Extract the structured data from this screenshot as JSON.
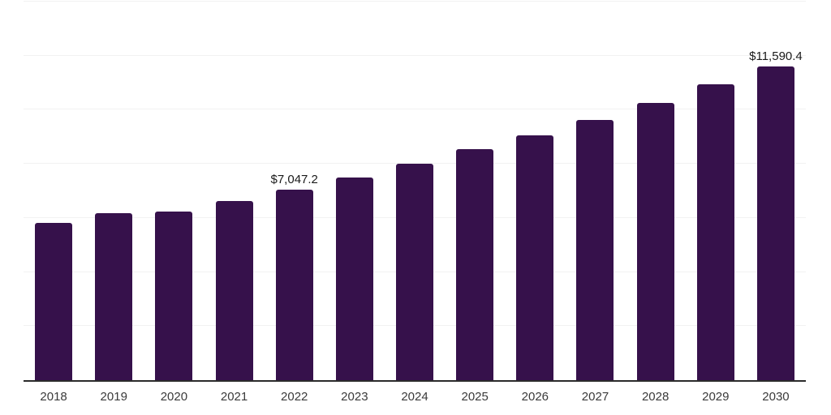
{
  "chart_data": {
    "type": "bar",
    "title": "",
    "xlabel": "",
    "ylabel": "",
    "categories": [
      "2018",
      "2019",
      "2020",
      "2021",
      "2022",
      "2023",
      "2024",
      "2025",
      "2026",
      "2027",
      "2028",
      "2029",
      "2030"
    ],
    "values": [
      5810,
      6170,
      6240,
      6630,
      7047.2,
      7490,
      8010,
      8540,
      9060,
      9610,
      10240,
      10930,
      11590.4
    ],
    "value_labels": {
      "2022": "$7,047.2",
      "2030": "$11,590.4"
    },
    "ylim": [
      0,
      14000
    ],
    "gridline_step": 2000,
    "grid": "horizontal",
    "y_tick_labels_visible": false,
    "legend_position": "none",
    "colors": {
      "bar": "#36114b",
      "gridline": "#f2f2f2",
      "axis_line": "#2b2b2b",
      "category_label": "#3a3a3a",
      "value_label": "#1a1a1a",
      "background": "#ffffff"
    }
  }
}
